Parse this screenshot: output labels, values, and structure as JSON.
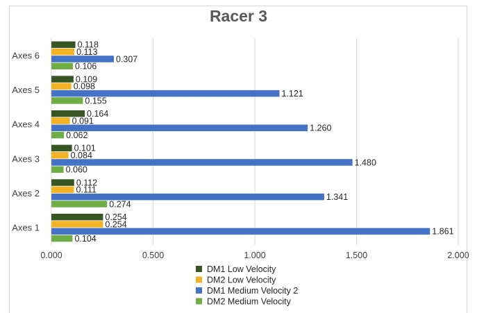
{
  "chart_data": {
    "type": "bar",
    "orientation": "horizontal",
    "title": "Racer 3",
    "categories": [
      "Axes 1",
      "Axes 2",
      "Axes 3",
      "Axes 4",
      "Axes 5",
      "Axes 6"
    ],
    "xlim": [
      0,
      2.0
    ],
    "xticks": [
      "0.000",
      "0.500",
      "1.000",
      "1.500",
      "2.000"
    ],
    "grid": true,
    "legend_position": "bottom",
    "series": [
      {
        "name": "DM1 Low Velocity",
        "color": "#375623",
        "values": [
          0.254,
          0.112,
          0.101,
          0.164,
          0.109,
          0.118
        ]
      },
      {
        "name": "DM2 Low Velocity",
        "color": "#f2b327",
        "values": [
          0.254,
          0.111,
          0.084,
          0.091,
          0.098,
          0.113
        ]
      },
      {
        "name": "DM1 Medium Velocity 2",
        "color": "#4472c4",
        "values": [
          1.861,
          1.341,
          1.48,
          1.26,
          1.121,
          0.307
        ]
      },
      {
        "name": "DM2 Medium Velocity",
        "color": "#70ad47",
        "values": [
          0.104,
          0.274,
          0.06,
          0.062,
          0.155,
          0.106
        ]
      }
    ]
  }
}
